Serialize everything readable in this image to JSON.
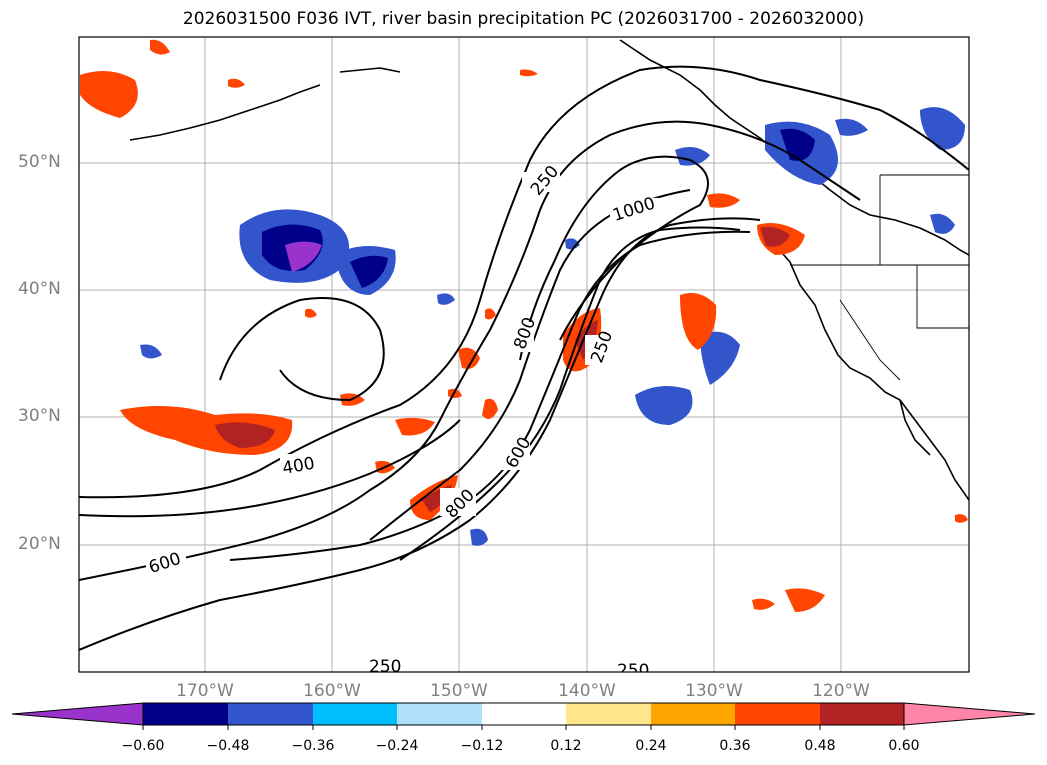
{
  "title": "2026031500 F036 IVT, river basin precipitation PC (2026031700 - 2026032000)",
  "lat_labels": [
    "50°N",
    "40°N",
    "30°N",
    "20°N"
  ],
  "lon_labels": [
    "170°W",
    "160°W",
    "150°W",
    "140°W",
    "130°W",
    "120°W"
  ],
  "contour_labels": [
    "250",
    "1000",
    "800",
    "250",
    "400",
    "600",
    "800",
    "600",
    "250",
    "250"
  ],
  "colorbar": {
    "ticks": [
      "−0.60",
      "−0.48",
      "−0.36",
      "−0.24",
      "−0.12",
      "0.12",
      "0.24",
      "0.36",
      "0.48",
      "0.60"
    ],
    "colors": [
      "#9933cc",
      "#00008b",
      "#3355cc",
      "#00bfff",
      "#aee0fa",
      "#ffffff",
      "#ffe68c",
      "#ffa500",
      "#ff4500",
      "#b22222",
      "#ff85a8"
    ]
  },
  "colors": {
    "negative_fill": "#3355cc",
    "positive_fill": "#ff4500",
    "grid": "#b0b0b0",
    "axis_text": "#808080"
  }
}
